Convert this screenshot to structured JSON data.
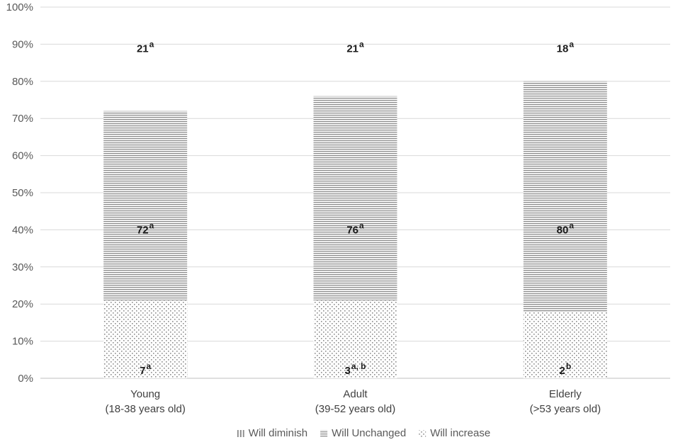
{
  "chart_data": {
    "type": "bar",
    "stacked": true,
    "categories": [
      [
        "Young",
        "(18-38 years old)"
      ],
      [
        "Adult",
        "(39-52 years old)"
      ],
      [
        "Elderly",
        "(>53 years old)"
      ]
    ],
    "series": [
      {
        "name": "Will diminish",
        "values": [
          7,
          3,
          2
        ],
        "labels": [
          "7",
          "3",
          "2"
        ],
        "superscripts": [
          "a",
          "a, b",
          "b"
        ],
        "pattern": "vertical-lines"
      },
      {
        "name": "Will Unchanged",
        "values": [
          72,
          76,
          80
        ],
        "labels": [
          "72",
          "76",
          "80"
        ],
        "superscripts": [
          "a",
          "a",
          "a"
        ],
        "pattern": "horizontal-lines"
      },
      {
        "name": "Will increase",
        "values": [
          21,
          21,
          18
        ],
        "labels": [
          "21",
          "21",
          "18"
        ],
        "superscripts": [
          "a",
          "a",
          "a"
        ],
        "pattern": "dots"
      }
    ],
    "y_ticks": [
      "0%",
      "10%",
      "20%",
      "30%",
      "40%",
      "50%",
      "60%",
      "70%",
      "80%",
      "90%",
      "100%"
    ],
    "ylim": [
      0,
      100
    ],
    "grid": true,
    "legend_position": "bottom",
    "colors": {
      "pattern_ink": "#8c8c8c",
      "grid": "#d9d9d9",
      "axis": "#bfbfbf"
    }
  }
}
